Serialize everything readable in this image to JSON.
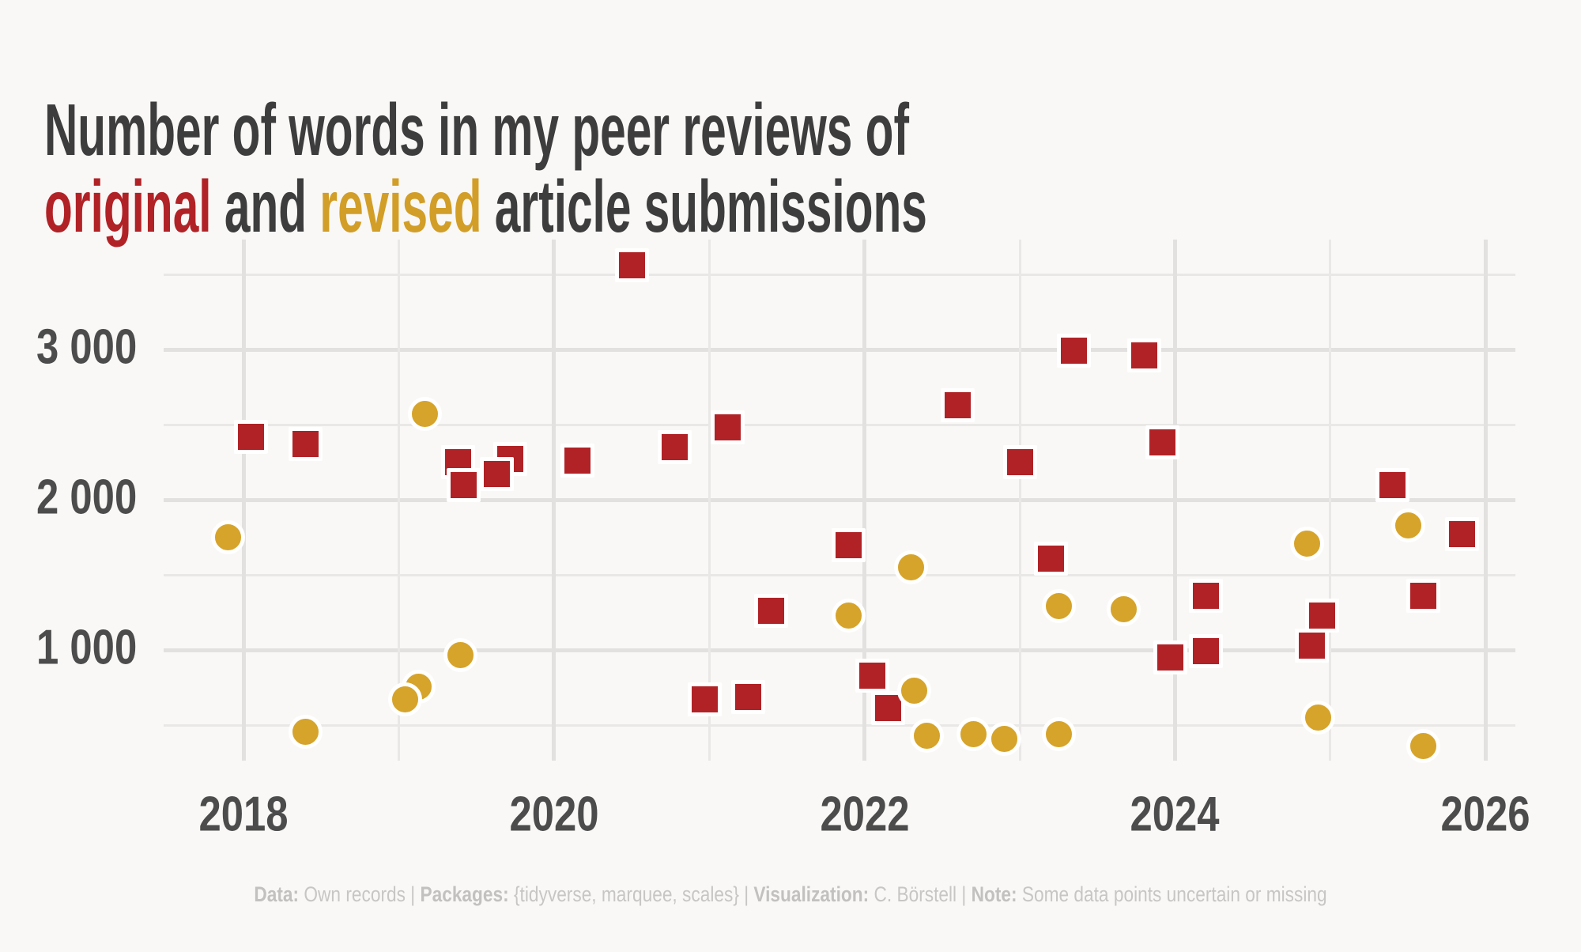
{
  "title": {
    "line1": "Number of words in my peer reviews of",
    "line2_original": "original",
    "line2_mid": " and ",
    "line2_revised": "revised",
    "line2_rest": " article submissions"
  },
  "colors": {
    "background": "#f9f8f6",
    "title_text": "#3d3d3d",
    "original_red": "#b12226",
    "revised_gold": "#d6a42a",
    "grid_major": "#e2e1df",
    "grid_minor": "#e9e8e6",
    "axis_text": "#4c4c4c",
    "caption_text": "#c7c6c4",
    "point_outline": "#ffffff"
  },
  "caption": {
    "parts": [
      {
        "text": "Data:",
        "bold": true
      },
      {
        "text": " Own records | ",
        "bold": false
      },
      {
        "text": "Packages:",
        "bold": true
      },
      {
        "text": " {tidyverse, marquee, scales} | ",
        "bold": false
      },
      {
        "text": "Visualization:",
        "bold": true
      },
      {
        "text": " C. Börstell | ",
        "bold": false
      },
      {
        "text": "Note:",
        "bold": true
      },
      {
        "text": " Some data points uncertain or missing",
        "bold": false
      }
    ]
  },
  "chart_data": {
    "type": "scatter",
    "title": "Number of words in my peer reviews of original and revised article submissions",
    "xlabel": "",
    "ylabel": "",
    "x_axis": {
      "ticks": [
        2018,
        2020,
        2022,
        2024,
        2026
      ],
      "minor_ticks": [
        2019,
        2021,
        2023,
        2025
      ],
      "range": [
        2017.5,
        2026.2
      ]
    },
    "y_axis": {
      "tick_labels": [
        "3 000",
        "2 000",
        "1 000"
      ],
      "tick_values": [
        3000,
        2000,
        1000
      ],
      "minor_tick_values": [
        3500,
        2500,
        1500,
        500
      ],
      "range": [
        270,
        3720
      ]
    },
    "grid": true,
    "legend": "encoded in title (original = red square, revised = gold circle)",
    "series": [
      {
        "name": "original",
        "marker": "square",
        "color": "#b12226",
        "points": [
          [
            2018.05,
            2420
          ],
          [
            2018.4,
            2370
          ],
          [
            2019.38,
            2250
          ],
          [
            2019.42,
            2100
          ],
          [
            2019.72,
            2270
          ],
          [
            2019.63,
            2170
          ],
          [
            2020.15,
            2260
          ],
          [
            2020.5,
            3560
          ],
          [
            2020.78,
            2350
          ],
          [
            2021.12,
            2480
          ],
          [
            2020.97,
            670
          ],
          [
            2021.25,
            685
          ],
          [
            2021.4,
            1260
          ],
          [
            2021.9,
            1700
          ],
          [
            2022.05,
            830
          ],
          [
            2022.15,
            615
          ],
          [
            2022.6,
            2630
          ],
          [
            2023.0,
            2250
          ],
          [
            2023.2,
            1610
          ],
          [
            2023.35,
            2990
          ],
          [
            2023.8,
            2960
          ],
          [
            2023.92,
            2380
          ],
          [
            2023.97,
            950
          ],
          [
            2024.2,
            990
          ],
          [
            2024.2,
            1360
          ],
          [
            2024.88,
            1030
          ],
          [
            2024.95,
            1230
          ],
          [
            2025.4,
            2100
          ],
          [
            2025.6,
            1360
          ],
          [
            2025.85,
            1770
          ]
        ]
      },
      {
        "name": "revised",
        "marker": "circle",
        "color": "#d6a42a",
        "points": [
          [
            2017.9,
            1750
          ],
          [
            2018.4,
            455
          ],
          [
            2019.13,
            755
          ],
          [
            2019.04,
            670
          ],
          [
            2019.17,
            2570
          ],
          [
            2019.4,
            965
          ],
          [
            2021.9,
            1230
          ],
          [
            2022.3,
            1550
          ],
          [
            2022.32,
            730
          ],
          [
            2022.4,
            430
          ],
          [
            2022.7,
            440
          ],
          [
            2022.9,
            410
          ],
          [
            2023.25,
            1290
          ],
          [
            2023.25,
            440
          ],
          [
            2023.67,
            1270
          ],
          [
            2024.85,
            1710
          ],
          [
            2024.92,
            550
          ],
          [
            2025.5,
            1830
          ],
          [
            2025.6,
            360
          ]
        ]
      }
    ]
  }
}
